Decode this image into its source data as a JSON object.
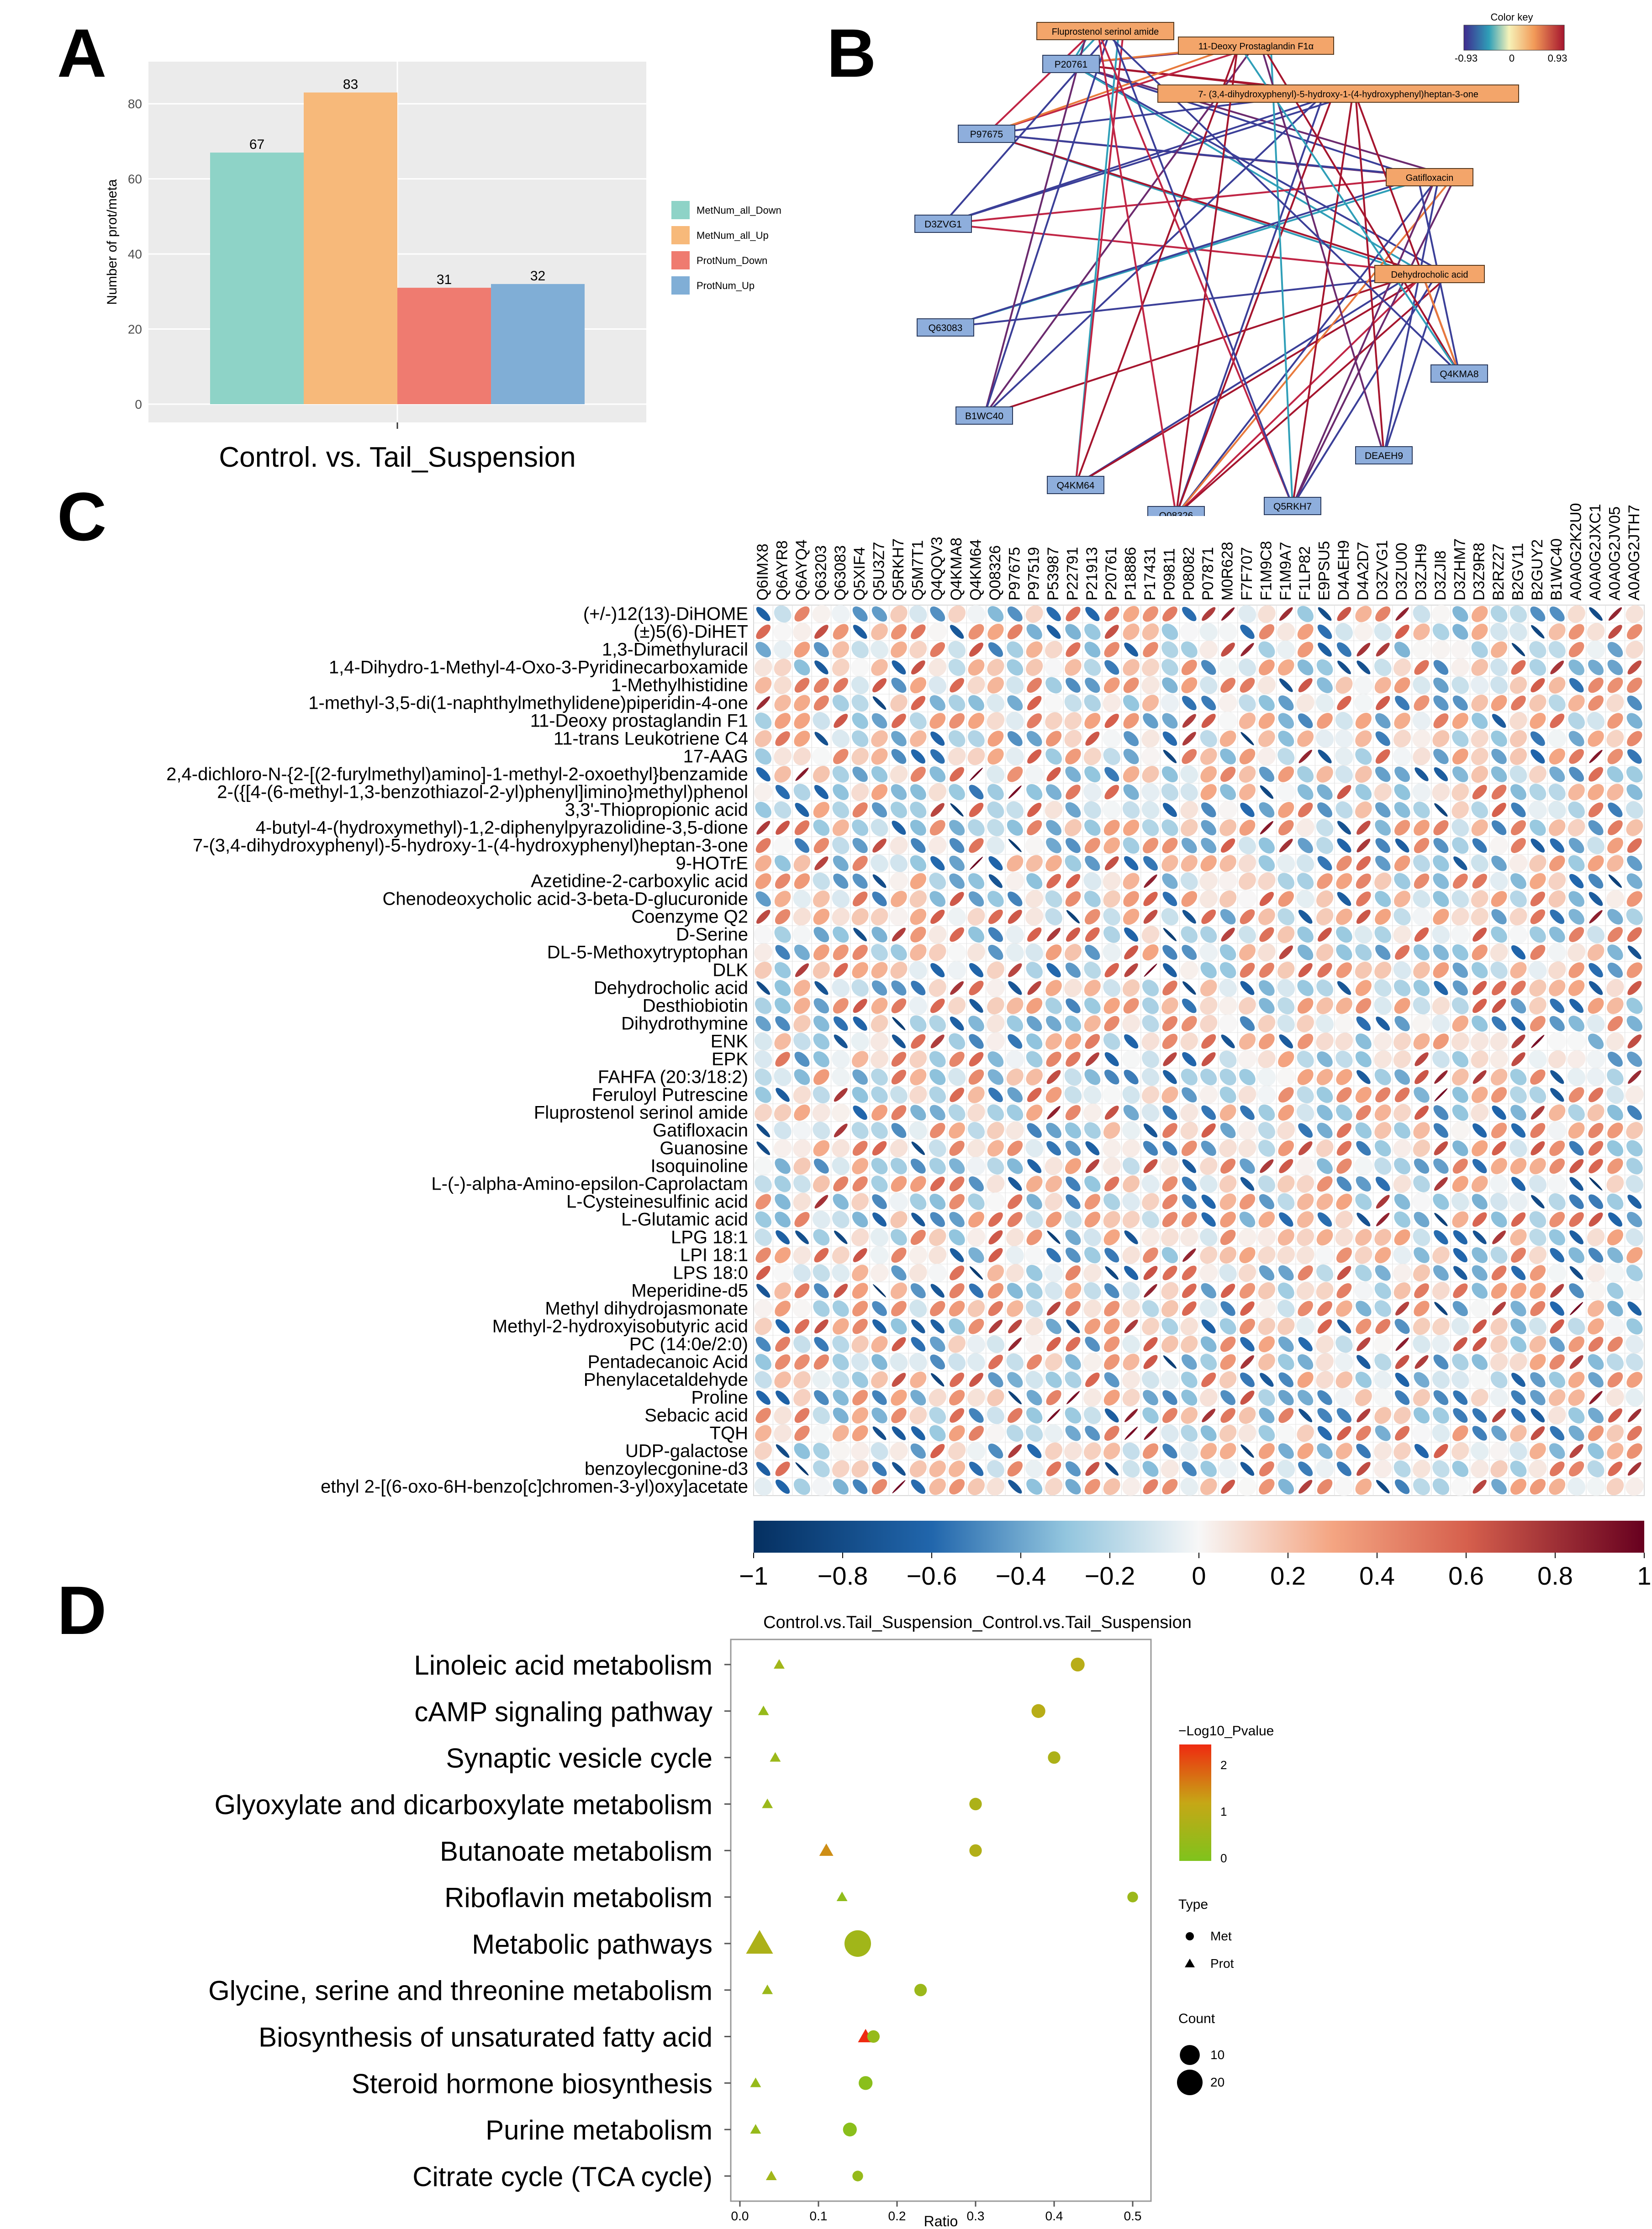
{
  "panels": {
    "a": "A",
    "b": "B",
    "c": "C",
    "d": "D"
  },
  "chart_data": [
    {
      "id": "A",
      "type": "bar",
      "title": "",
      "xlabel": "Control. vs. Tail_Suspension",
      "ylabel": "Number of prot/meta",
      "ylim": [
        0,
        90
      ],
      "yticks": [
        0,
        20,
        40,
        60,
        80
      ],
      "categories": [
        "MetNum_all_Down",
        "MetNum_all_Up",
        "ProtNum_Down",
        "ProtNum_Up"
      ],
      "values": [
        67,
        83,
        31,
        32
      ],
      "colors": [
        "#8ed3c7",
        "#f7b97a",
        "#ef7b70",
        "#80aed6"
      ],
      "legend": [
        "MetNum_all_Down",
        "MetNum_all_Up",
        "ProtNum_Down",
        "ProtNum_Up"
      ],
      "legend_position": "right",
      "grid": true
    },
    {
      "id": "B",
      "type": "network",
      "color_key": {
        "title": "Color key",
        "min": "-0.93",
        "mid": "0",
        "max": "0.93"
      },
      "metabolites": [
        "Fluprostenol serinol amide",
        "11-Deoxy Prostaglandin F1α",
        "7- (3,4-dihydroxyphenyl)-5-hydroxy-1-(4-hydroxyphenyl)heptan-3-one",
        "Gatifloxacin",
        "Dehydrocholic acid"
      ],
      "proteins": [
        "P20761",
        "P97675",
        "D3ZVG1",
        "Q63083",
        "B1WC40",
        "Q4KM64",
        "Q08326",
        "Q5RKH7",
        "DEAEH9",
        "Q4KMA8"
      ]
    },
    {
      "id": "C",
      "type": "heatmap",
      "columns": [
        "Q6IMX8",
        "Q6AYR8",
        "Q6AYQ4",
        "Q63203",
        "Q63083",
        "Q5XIF4",
        "Q5U3Z7",
        "Q5RKH7",
        "Q5M7T1",
        "Q4QQV3",
        "Q4KMA8",
        "Q4KM64",
        "Q08326",
        "P97675",
        "P97519",
        "P53987",
        "P22791",
        "P21913",
        "P20761",
        "P18886",
        "P17431",
        "P09811",
        "P08082",
        "P07871",
        "M0R628",
        "F7F707",
        "F1M9C8",
        "F1M9A7",
        "F1LP82",
        "E9PSU5",
        "D4AEH9",
        "D4A2D7",
        "D3ZVG1",
        "D3ZU00",
        "D3ZJH9",
        "D3ZJI8",
        "D3ZHM7",
        "D3Z9R8",
        "B2RZ27",
        "B2GV11",
        "B2GUY2",
        "B1WC40",
        "A0A0G2K2U0",
        "A0A0G2JXC1",
        "A0A0G2JV05",
        "A0A0G2JTH7"
      ],
      "rows": [
        "(+/-)12(13)-DiHOME",
        "(±)5(6)-DiHET",
        "1,3-Dimethyluracil",
        "1,4-Dihydro-1-Methyl-4-Oxo-3-Pyridinecarboxamide",
        "1-Methylhistidine",
        "1-methyl-3,5-di(1-naphthylmethylidene)piperidin-4-one",
        "11-Deoxy prostaglandin F1",
        "11-trans Leukotriene C4",
        "17-AAG",
        "2,4-dichloro-N-{2-[(2-furylmethyl)amino]-1-methyl-2-oxoethyl}benzamide",
        "2-({[4-(6-methyl-1,3-benzothiazol-2-yl)phenyl]imino}methyl)phenol",
        "3,3'-Thiopropionic acid",
        "4-butyl-4-(hydroxymethyl)-1,2-diphenylpyrazolidine-3,5-dione",
        "7-(3,4-dihydroxyphenyl)-5-hydroxy-1-(4-hydroxyphenyl)heptan-3-one",
        "9-HOTrE",
        "Azetidine-2-carboxylic acid",
        "Chenodeoxycholic acid-3-beta-D-glucuronide",
        "Coenzyme Q2",
        "D-Serine",
        "DL-5-Methoxytryptophan",
        "DLK",
        "Dehydrocholic acid",
        "Desthiobiotin",
        "Dihydrothymine",
        "ENK",
        "EPK",
        "FAHFA (20:3/18:2)",
        "Feruloyl Putrescine",
        "Fluprostenol serinol amide",
        "Gatifloxacin",
        "Guanosine",
        "Isoquinoline",
        "L-(-)-alpha-Amino-epsilon-Caprolactam",
        "L-Cysteinesulfinic acid",
        "L-Glutamic acid",
        "LPG 18:1",
        "LPI 18:1",
        "LPS 18:0",
        "Meperidine-d5",
        "Methyl dihydrojasmonate",
        "Methyl-2-hydroxyisobutyric acid",
        "PC (14:0e/2:0)",
        "Pentadecanoic Acid",
        "Phenylacetaldehyde",
        "Proline",
        "Sebacic acid",
        "TQH",
        "UDP-galactose",
        "benzoylecgonine-d3",
        "ethyl 2-[(6-oxo-6H-benzo[c]chromen-3-yl)oxy]acetate"
      ],
      "colorbar": {
        "min": -1,
        "max": 1,
        "ticks": [
          "−1",
          "−0.8",
          "−0.6",
          "−0.4",
          "−0.2",
          "0",
          "0.2",
          "0.4",
          "0.6",
          "0.8",
          "1"
        ]
      }
    },
    {
      "id": "D",
      "type": "scatter",
      "title": "Control.vs.Tail_Suspension_Control.vs.Tail_Suspension",
      "xlabel": "Ratio",
      "xlim": [
        0,
        0.52
      ],
      "xticks": [
        "0.0",
        "0.1",
        "0.2",
        "0.3",
        "0.4",
        "0.5"
      ],
      "pathways": [
        "Linoleic acid metabolism",
        "cAMP signaling pathway",
        "Synaptic vesicle cycle",
        "Glyoxylate and dicarboxylate metabolism",
        "Butanoate metabolism",
        "Riboflavin metabolism",
        "Metabolic pathways",
        "Glycine, serine and threonine metabolism",
        "Biosynthesis of unsaturated fatty acid",
        "Steroid hormone biosynthesis",
        "Purine metabolism",
        "Citrate cycle (TCA cycle)"
      ],
      "points": [
        {
          "pathway": "Linoleic acid metabolism",
          "type": "Prot",
          "ratio": 0.05,
          "logp": 0.6,
          "count": 1
        },
        {
          "pathway": "Linoleic acid metabolism",
          "type": "Met",
          "ratio": 0.43,
          "logp": 1.0,
          "count": 3
        },
        {
          "pathway": "cAMP signaling pathway",
          "type": "Prot",
          "ratio": 0.03,
          "logp": 0.4,
          "count": 1
        },
        {
          "pathway": "cAMP signaling pathway",
          "type": "Met",
          "ratio": 0.38,
          "logp": 1.0,
          "count": 3
        },
        {
          "pathway": "Synaptic vesicle cycle",
          "type": "Prot",
          "ratio": 0.045,
          "logp": 0.5,
          "count": 1
        },
        {
          "pathway": "Synaptic vesicle cycle",
          "type": "Met",
          "ratio": 0.4,
          "logp": 0.8,
          "count": 2
        },
        {
          "pathway": "Glyoxylate and dicarboxylate metabolism",
          "type": "Prot",
          "ratio": 0.035,
          "logp": 0.5,
          "count": 1
        },
        {
          "pathway": "Glyoxylate and dicarboxylate metabolism",
          "type": "Met",
          "ratio": 0.3,
          "logp": 0.8,
          "count": 2
        },
        {
          "pathway": "Butanoate metabolism",
          "type": "Prot",
          "ratio": 0.11,
          "logp": 1.5,
          "count": 3
        },
        {
          "pathway": "Butanoate metabolism",
          "type": "Met",
          "ratio": 0.3,
          "logp": 0.9,
          "count": 2
        },
        {
          "pathway": "Riboflavin metabolism",
          "type": "Prot",
          "ratio": 0.13,
          "logp": 0.3,
          "count": 1
        },
        {
          "pathway": "Riboflavin metabolism",
          "type": "Met",
          "ratio": 0.5,
          "logp": 0.5,
          "count": 1
        },
        {
          "pathway": "Metabolic pathways",
          "type": "Prot",
          "ratio": 0.025,
          "logp": 0.8,
          "count": 22
        },
        {
          "pathway": "Metabolic pathways",
          "type": "Met",
          "ratio": 0.15,
          "logp": 0.6,
          "count": 22
        },
        {
          "pathway": "Glycine, serine and threonine metabolism",
          "type": "Prot",
          "ratio": 0.035,
          "logp": 0.5,
          "count": 1
        },
        {
          "pathway": "Glycine, serine and threonine metabolism",
          "type": "Met",
          "ratio": 0.23,
          "logp": 0.5,
          "count": 2
        },
        {
          "pathway": "Biosynthesis of unsaturated fatty acid",
          "type": "Prot",
          "ratio": 0.16,
          "logp": 2.6,
          "count": 4
        },
        {
          "pathway": "Biosynthesis of unsaturated fatty acid",
          "type": "Met",
          "ratio": 0.17,
          "logp": 0.4,
          "count": 2
        },
        {
          "pathway": "Steroid hormone biosynthesis",
          "type": "Prot",
          "ratio": 0.02,
          "logp": 0.4,
          "count": 1
        },
        {
          "pathway": "Steroid hormone biosynthesis",
          "type": "Met",
          "ratio": 0.16,
          "logp": 0.2,
          "count": 3
        },
        {
          "pathway": "Purine metabolism",
          "type": "Prot",
          "ratio": 0.02,
          "logp": 0.4,
          "count": 1
        },
        {
          "pathway": "Purine metabolism",
          "type": "Met",
          "ratio": 0.14,
          "logp": 0.2,
          "count": 3
        },
        {
          "pathway": "Citrate cycle (TCA cycle)",
          "type": "Prot",
          "ratio": 0.04,
          "logp": 0.6,
          "count": 1
        },
        {
          "pathway": "Citrate cycle (TCA cycle)",
          "type": "Met",
          "ratio": 0.15,
          "logp": 0.4,
          "count": 1
        }
      ],
      "legend_color": {
        "title": "−Log10_Pvalue",
        "ticks": [
          "0",
          "1",
          "2"
        ]
      },
      "legend_type": {
        "title": "Type",
        "items": [
          "Met",
          "Prot"
        ]
      },
      "legend_count": {
        "title": "Count",
        "items": [
          "10",
          "20"
        ]
      }
    }
  ]
}
